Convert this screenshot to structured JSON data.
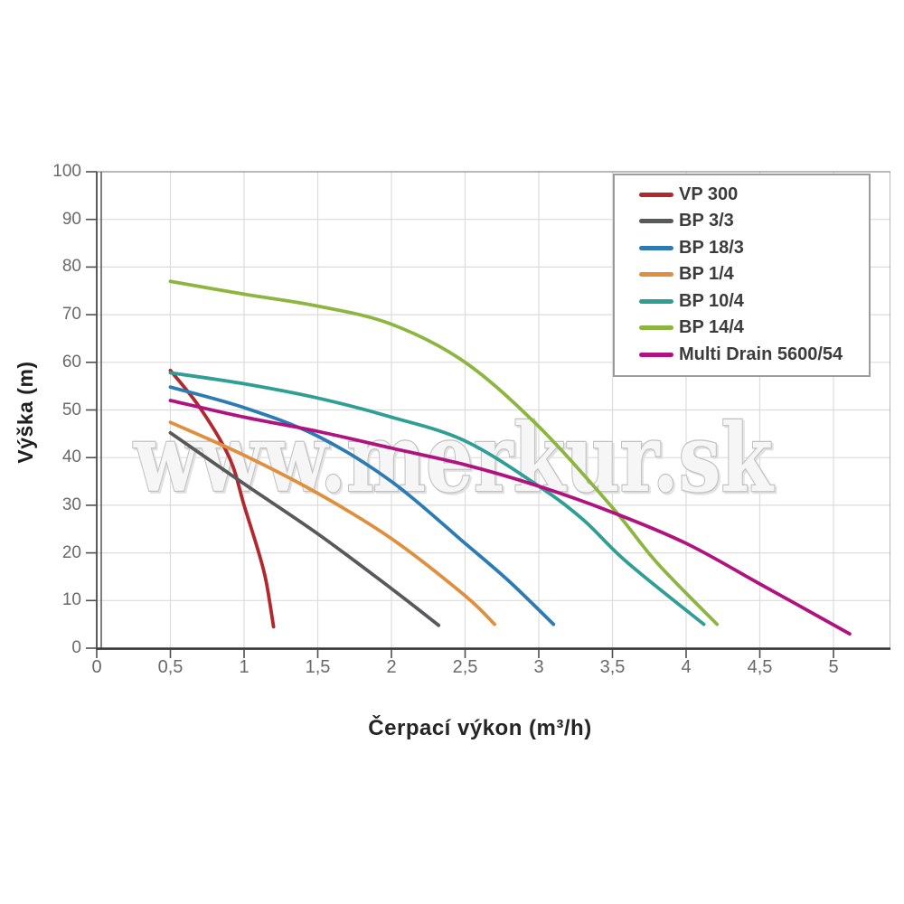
{
  "chart_data": {
    "type": "line",
    "title": "",
    "xlabel": "Čerpací výkon (m³/h)",
    "ylabel": "Výška (m)",
    "xlim": [
      0,
      5.39
    ],
    "ylim": [
      0,
      100
    ],
    "grid": true,
    "legend_position": "top-right",
    "watermark": "www.merkur.sk",
    "x_ticks": [
      {
        "value": 0,
        "label": "0"
      },
      {
        "value": 0.5,
        "label": "0,5"
      },
      {
        "value": 1,
        "label": "1"
      },
      {
        "value": 1.5,
        "label": "1,5"
      },
      {
        "value": 2,
        "label": "2"
      },
      {
        "value": 2.5,
        "label": "2,5"
      },
      {
        "value": 3,
        "label": "3"
      },
      {
        "value": 3.5,
        "label": "3,5"
      },
      {
        "value": 4,
        "label": "4"
      },
      {
        "value": 4.5,
        "label": "4,5"
      },
      {
        "value": 5,
        "label": "5"
      }
    ],
    "y_ticks": [
      {
        "value": 0,
        "label": "0"
      },
      {
        "value": 10,
        "label": "10"
      },
      {
        "value": 20,
        "label": "20"
      },
      {
        "value": 30,
        "label": "30"
      },
      {
        "value": 40,
        "label": "40"
      },
      {
        "value": 50,
        "label": "50"
      },
      {
        "value": 60,
        "label": "60"
      },
      {
        "value": 70,
        "label": "70"
      },
      {
        "value": 80,
        "label": "80"
      },
      {
        "value": 90,
        "label": "90"
      },
      {
        "value": 100,
        "label": "100"
      }
    ],
    "series": [
      {
        "name": "VP 300",
        "color": "#b1282d",
        "points": [
          [
            0.5,
            58.3
          ],
          [
            0.7,
            50.5
          ],
          [
            0.9,
            40
          ],
          [
            1.0,
            30
          ],
          [
            1.1,
            20
          ],
          [
            1.15,
            14
          ],
          [
            1.2,
            4.5
          ]
        ]
      },
      {
        "name": "BP 3/3",
        "color": "#58595a",
        "points": [
          [
            0.5,
            45.2
          ],
          [
            1.0,
            34.5
          ],
          [
            1.5,
            24
          ],
          [
            2.0,
            12.5
          ],
          [
            2.32,
            4.8
          ]
        ]
      },
      {
        "name": "BP 18/3",
        "color": "#2d7bb5",
        "points": [
          [
            0.5,
            54.8
          ],
          [
            1.0,
            50.5
          ],
          [
            1.5,
            44.5
          ],
          [
            2.0,
            35
          ],
          [
            2.5,
            22
          ],
          [
            2.8,
            14
          ],
          [
            3.1,
            5
          ]
        ]
      },
      {
        "name": "BP 1/4",
        "color": "#df8f3d",
        "points": [
          [
            0.5,
            47.4
          ],
          [
            1.0,
            40.5
          ],
          [
            1.5,
            32.5
          ],
          [
            2.0,
            23
          ],
          [
            2.5,
            11
          ],
          [
            2.7,
            5
          ]
        ]
      },
      {
        "name": "BP 10/4",
        "color": "#2f9e94",
        "points": [
          [
            0.5,
            57.8
          ],
          [
            1.0,
            55.5
          ],
          [
            1.5,
            52.5
          ],
          [
            2.0,
            48.5
          ],
          [
            2.5,
            43.5
          ],
          [
            3.0,
            34
          ],
          [
            3.3,
            27
          ],
          [
            3.6,
            18
          ],
          [
            4.12,
            5
          ]
        ]
      },
      {
        "name": "BP 14/4",
        "color": "#8cb63f",
        "points": [
          [
            0.5,
            77
          ],
          [
            1.0,
            74.3
          ],
          [
            1.5,
            71.8
          ],
          [
            2.0,
            68
          ],
          [
            2.5,
            60
          ],
          [
            3.0,
            46.5
          ],
          [
            3.5,
            29.5
          ],
          [
            3.8,
            18
          ],
          [
            4.21,
            5
          ]
        ]
      },
      {
        "name": "Multi Drain 5600/54",
        "color": "#b01380",
        "points": [
          [
            0.5,
            52
          ],
          [
            1.0,
            48.5
          ],
          [
            1.5,
            45.5
          ],
          [
            2.0,
            42
          ],
          [
            2.5,
            38.5
          ],
          [
            3.0,
            34
          ],
          [
            3.5,
            28.5
          ],
          [
            4.0,
            22
          ],
          [
            4.5,
            13.5
          ],
          [
            5.11,
            3
          ]
        ]
      }
    ]
  },
  "style_colors": {
    "grid": "#dcdcdc",
    "axis_spine": "#4a4a4a",
    "axis_bottom": "#383838",
    "plot_border": "#8a8a8a",
    "tick": "#4f4f4f",
    "tick_label": "#696969",
    "legend_border": "#9c9c9c",
    "watermark_fill": "#f6f6f6",
    "watermark_stroke": "#c0c0c0"
  }
}
